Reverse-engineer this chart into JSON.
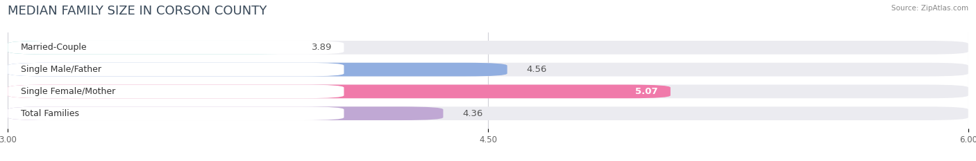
{
  "title": "MEDIAN FAMILY SIZE IN CORSON COUNTY",
  "source": "Source: ZipAtlas.com",
  "categories": [
    "Married-Couple",
    "Single Male/Father",
    "Single Female/Mother",
    "Total Families"
  ],
  "values": [
    3.89,
    4.56,
    5.07,
    4.36
  ],
  "bar_colors": [
    "#7ecfcb",
    "#91aee0",
    "#f07aaa",
    "#c0a8d4"
  ],
  "value_colors": [
    "#555555",
    "#555555",
    "#ffffff",
    "#555555"
  ],
  "xlim_min": 3.0,
  "xlim_max": 6.0,
  "xticks": [
    3.0,
    4.5,
    6.0
  ],
  "xtick_labels": [
    "3.00",
    "4.50",
    "6.00"
  ],
  "bar_height": 0.62,
  "background_color": "#ffffff",
  "bar_bg_color": "#ebebf0",
  "label_bg_color": "#ffffff",
  "title_fontsize": 13,
  "label_fontsize": 9,
  "value_fontsize": 9.5,
  "title_color": "#3a4a5a",
  "source_color": "#888888",
  "grid_color": "#d0d0d8"
}
